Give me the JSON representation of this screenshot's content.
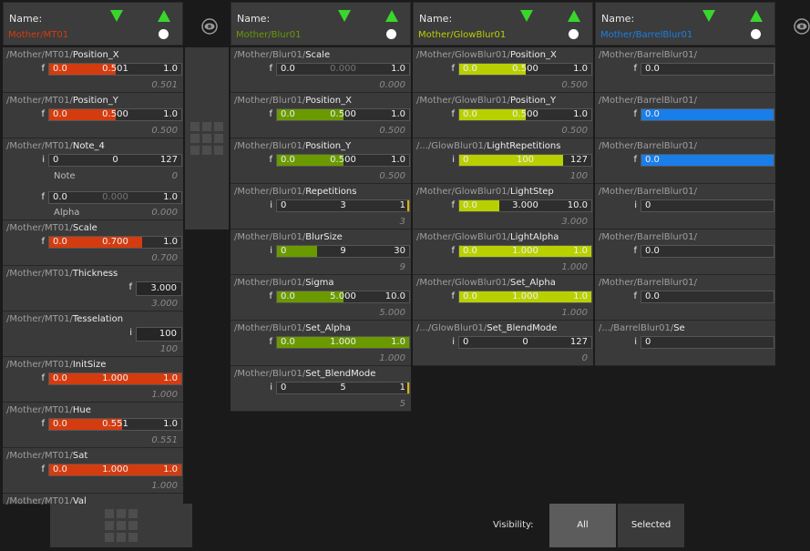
{
  "footer": {
    "visibility_label": "Visibility:",
    "all_label": "All",
    "selected_label": "Selected"
  },
  "columns": [
    {
      "name_label": "Name:",
      "path": "Mother/MT01",
      "accent": "#d43c10",
      "params": [
        {
          "prefix": "/Mother/MT01/",
          "name": "Position_X",
          "type": "f",
          "min": "0.0",
          "value": "0.501",
          "max": "1.0",
          "current": "0.501",
          "fill": 0.501
        },
        {
          "prefix": "/Mother/MT01/",
          "name": "Position_Y",
          "type": "f",
          "min": "0.0",
          "value": "0.500",
          "max": "1.0",
          "current": "0.500",
          "fill": 0.5
        },
        {
          "prefix": "/Mother/MT01/",
          "name": "Note_4",
          "type": "i",
          "min": "0",
          "value": "0",
          "max": "127",
          "current": "",
          "fill": 0,
          "subs": [
            {
              "label": "Note",
              "current": "0"
            },
            {
              "type": "f",
              "min": "0.0",
              "value": "0.000",
              "max": "1.0",
              "label": "Alpha",
              "current": "0.000"
            }
          ]
        },
        {
          "prefix": "/Mother/MT01/",
          "name": "Scale",
          "type": "f",
          "min": "0.0",
          "value": "0.700",
          "max": "1.0",
          "current": "0.700",
          "fill": 0.7
        },
        {
          "prefix": "/Mother/MT01/",
          "name": "Thickness",
          "type": "f",
          "single": "3.000",
          "current": "3.000"
        },
        {
          "prefix": "/Mother/MT01/",
          "name": "Tesselation",
          "type": "i",
          "single": "100",
          "current": "100"
        },
        {
          "prefix": "/Mother/MT01/",
          "name": "InitSize",
          "type": "f",
          "min": "0.0",
          "value": "1.000",
          "max": "1.0",
          "current": "1.000",
          "fill": 1
        },
        {
          "prefix": "/Mother/MT01/",
          "name": "Hue",
          "type": "f",
          "min": "0.0",
          "value": "0.551",
          "max": "1.0",
          "current": "0.551",
          "fill": 0.551
        },
        {
          "prefix": "/Mother/MT01/",
          "name": "Sat",
          "type": "f",
          "min": "0.0",
          "value": "1.000",
          "max": "1.0",
          "current": "1.000",
          "fill": 1
        },
        {
          "prefix": "/Mother/MT01/",
          "name": "Val"
        }
      ]
    },
    {
      "name_label": "Name:",
      "path": "Mother/Blur01",
      "accent": "#6a9a00",
      "params": [
        {
          "prefix": "/Mother/Blur01/",
          "name": "Scale",
          "type": "f",
          "min": "0.0",
          "value": "0.000",
          "max": "1.0",
          "current": "0.000",
          "fill": 0,
          "dim": true
        },
        {
          "prefix": "/Mother/Blur01/",
          "name": "Position_X",
          "type": "f",
          "min": "0.0",
          "value": "0.500",
          "max": "1.0",
          "current": "0.500",
          "fill": 0.5
        },
        {
          "prefix": "/Mother/Blur01/",
          "name": "Position_Y",
          "type": "f",
          "min": "0.0",
          "value": "0.500",
          "max": "1.0",
          "current": "0.500",
          "fill": 0.5
        },
        {
          "prefix": "/Mother/Blur01/",
          "name": "Repetitions",
          "type": "i",
          "min": "0",
          "value": "3",
          "max": "1",
          "current": "3",
          "fill": 0,
          "cap": true
        },
        {
          "prefix": "/Mother/Blur01/",
          "name": "BlurSize",
          "type": "i",
          "min": "0",
          "value": "9",
          "max": "30",
          "current": "9",
          "fill": 0.3
        },
        {
          "prefix": "/Mother/Blur01/",
          "name": "Sigma",
          "type": "f",
          "min": "0.0",
          "value": "5.000",
          "max": "10.0",
          "current": "5.000",
          "fill": 0.5
        },
        {
          "prefix": "/Mother/Blur01/",
          "name": "Set_Alpha",
          "type": "f",
          "min": "0.0",
          "value": "1.000",
          "max": "1.0",
          "current": "1.000",
          "fill": 1
        },
        {
          "prefix": "/Mother/Blur01/",
          "name": "Set_BlendMode",
          "type": "i",
          "min": "0",
          "value": "5",
          "max": "1",
          "current": "5",
          "fill": 0,
          "cap": true
        }
      ]
    },
    {
      "name_label": "Name:",
      "path": "Mother/GlowBlur01",
      "accent": "#b8d000",
      "params": [
        {
          "prefix": "/Mother/GlowBlur01/",
          "name": "Position_X",
          "type": "f",
          "min": "0.0",
          "value": "0.500",
          "max": "1.0",
          "current": "0.500",
          "fill": 0.5
        },
        {
          "prefix": "/Mother/GlowBlur01/",
          "name": "Position_Y",
          "type": "f",
          "min": "0.0",
          "value": "0.500",
          "max": "1.0",
          "current": "0.500",
          "fill": 0.5
        },
        {
          "prefix": "/.../GlowBlur01/",
          "name": "LightRepetitions",
          "type": "i",
          "min": "0",
          "value": "100",
          "max": "127",
          "current": "100",
          "fill": 0.787
        },
        {
          "prefix": "/Mother/GlowBlur01/",
          "name": "LightStep",
          "type": "f",
          "min": "0.0",
          "value": "3.000",
          "max": "10.0",
          "current": "3.000",
          "fill": 0.3
        },
        {
          "prefix": "/Mother/GlowBlur01/",
          "name": "LightAlpha",
          "type": "f",
          "min": "0.0",
          "value": "1.000",
          "max": "1.0",
          "current": "1.000",
          "fill": 1
        },
        {
          "prefix": "/Mother/GlowBlur01/",
          "name": "Set_Alpha",
          "type": "f",
          "min": "0.0",
          "value": "1.000",
          "max": "1.0",
          "current": "1.000",
          "fill": 1
        },
        {
          "prefix": "/.../GlowBlur01/",
          "name": "Set_BlendMode",
          "type": "i",
          "min": "0",
          "value": "0",
          "max": "127",
          "current": "0",
          "fill": 0
        }
      ]
    },
    {
      "name_label": "Name:",
      "path": "Mother/BarrelBlur01",
      "accent": "#1a7ee8",
      "params": [
        {
          "prefix": "/Mother/BarrelBlur01/",
          "name": "",
          "type": "f",
          "min": "0.0",
          "value": "",
          "max": "",
          "current": "",
          "fill": 0
        },
        {
          "prefix": "/Mother/BarrelBlur01/",
          "name": "",
          "type": "f",
          "min": "0.0",
          "value": "",
          "max": "",
          "current": "",
          "fill": 1
        },
        {
          "prefix": "/Mother/BarrelBlur01/",
          "name": "",
          "type": "f",
          "min": "0.0",
          "value": "",
          "max": "",
          "current": "",
          "fill": 1
        },
        {
          "prefix": "/Mother/BarrelBlur01/",
          "name": "",
          "type": "i",
          "min": "0",
          "value": "",
          "max": "",
          "current": "",
          "fill": 0
        },
        {
          "prefix": "/Mother/BarrelBlur01/",
          "name": "",
          "type": "f",
          "min": "0.0",
          "value": "",
          "max": "",
          "current": "",
          "fill": 0
        },
        {
          "prefix": "/Mother/BarrelBlur01/",
          "name": "",
          "type": "f",
          "min": "0.0",
          "value": "",
          "max": "",
          "current": "",
          "fill": 0
        },
        {
          "prefix": "/.../BarrelBlur01/",
          "name": "Se",
          "type": "i",
          "min": "0",
          "value": "",
          "max": "",
          "current": "",
          "fill": 0
        }
      ]
    }
  ]
}
